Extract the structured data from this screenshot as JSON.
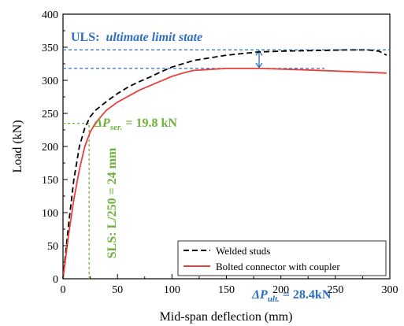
{
  "chart_data": {
    "type": "line",
    "xlabel": "Mid-span deflection (mm)",
    "ylabel": "Load (kN)",
    "xlim": [
      0,
      300
    ],
    "ylim": [
      0,
      400
    ],
    "xticks": [
      0,
      50,
      100,
      150,
      200,
      250,
      300
    ],
    "yticks": [
      0,
      50,
      100,
      150,
      200,
      250,
      300,
      350,
      400
    ],
    "grid": false,
    "legend_position": "bottom-right",
    "series": [
      {
        "name": "Welded studs",
        "color": "#000000",
        "style": "dashed",
        "x": [
          0,
          5,
          10,
          15,
          20,
          25,
          30,
          40,
          50,
          60,
          70,
          80,
          90,
          100,
          120,
          150,
          180,
          200,
          230,
          260,
          280,
          290,
          297
        ],
        "y": [
          0,
          80,
          150,
          200,
          228,
          245,
          255,
          268,
          280,
          290,
          298,
          305,
          313,
          320,
          330,
          338,
          343,
          344,
          345,
          346,
          346,
          344,
          338
        ]
      },
      {
        "name": "Bolted connector with coupler",
        "color": "#e8413c",
        "style": "solid",
        "x": [
          0,
          5,
          10,
          15,
          20,
          25,
          30,
          40,
          50,
          60,
          70,
          80,
          90,
          100,
          110,
          120,
          150,
          180,
          200,
          250,
          297
        ],
        "y": [
          0,
          65,
          120,
          165,
          200,
          222,
          236,
          255,
          267,
          276,
          285,
          292,
          299,
          306,
          311,
          315,
          318,
          318,
          317,
          314,
          311
        ]
      }
    ],
    "reference_lines": {
      "uls_load": 346,
      "ultimate_bolted_load": 318,
      "sls_deflection": 24,
      "sls_load": 235
    },
    "annotations": {
      "uls_label": "ULS:",
      "uls_italic": "ultimate limit state",
      "delta_ult_symbol": "ΔP",
      "delta_ult_sub": "ult.",
      "delta_ult_value": " = 28.4kN",
      "delta_ser_symbol": "ΔP",
      "delta_ser_sub": "ser.",
      "delta_ser_value": " = 19.8 kN",
      "sls_label": "SLS: L/250 = 24 mm"
    },
    "colors": {
      "blue_annotation": "#2e6fc2",
      "green_annotation": "#6fb23a"
    }
  }
}
